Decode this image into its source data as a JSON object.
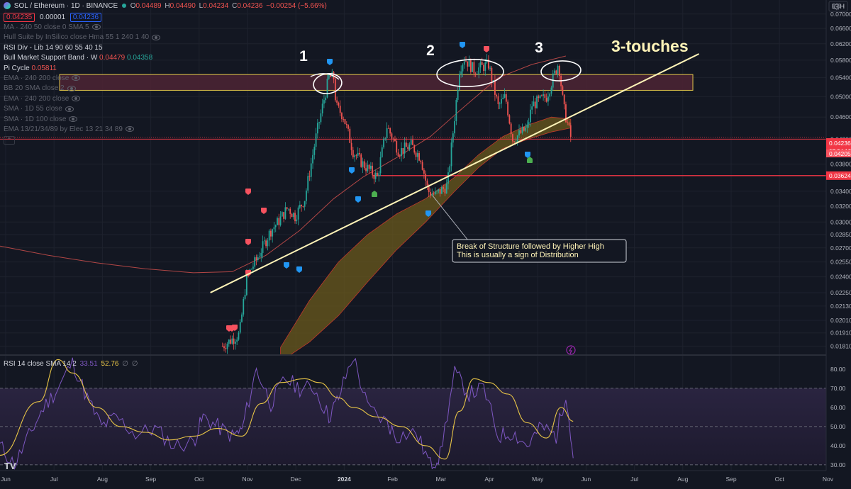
{
  "header": {
    "symbol": "SOL / Ethereum · 1D · BINANCE",
    "o_label": "O",
    "o": "0.04489",
    "h_label": "H",
    "h": "0.04490",
    "l_label": "L",
    "l": "0.04234",
    "c_label": "C",
    "c": "0.04236",
    "change": "−0.00254 (−5.66%)",
    "bid": "0.04235",
    "spread": "0.00001",
    "ask": "0.04236"
  },
  "indicators": [
    {
      "text": "MA · 240 50 close 0 SMA 5",
      "dim": true,
      "eye": true
    },
    {
      "text": "Hull Suite by InSilico close Hma 55 1 240 1 40",
      "dim": true,
      "eye": true
    },
    {
      "text": "RSI Div - Lib 14 90 60 55 40 15",
      "dim": false,
      "eye": false
    },
    {
      "text": "Bull Market Support Band · W",
      "dim": false,
      "eye": false,
      "v1": "0.04479",
      "v2": "0.04358"
    },
    {
      "text": "Pi Cycle",
      "dim": false,
      "eye": false,
      "v1": "0.05811"
    },
    {
      "text": "EMA · 240 200 close",
      "dim": true,
      "eye": true
    },
    {
      "text": "BB 20 SMA close 2",
      "dim": true,
      "eye": true
    },
    {
      "text": "EMA · 240 200 close",
      "dim": true,
      "eye": true
    },
    {
      "text": "SMA · 1D 55 close",
      "dim": true,
      "eye": true
    },
    {
      "text": "SMA · 1D 100 close",
      "dim": true,
      "eye": true
    },
    {
      "text": "EMA 13/21/34/89 by Elec 13 21 34 89",
      "dim": true,
      "eye": true
    }
  ],
  "rsi_legend": {
    "text": "RSI 14 close SMA 14 2",
    "v1": "33.51",
    "v2": "52.76"
  },
  "axis_currency": "ETH",
  "price_badges": [
    {
      "label": "0.04236",
      "sub": "07:34:12",
      "color": "#f23645",
      "value": 0.04236
    },
    {
      "label": "0.04205",
      "color": "#f7525f",
      "value": 0.04205
    },
    {
      "label": "0.03624",
      "color": "#f23645",
      "value": 0.03624
    }
  ],
  "annotations": {
    "touch1": "1",
    "touch2": "2",
    "touch3": "3",
    "title": "3-touches",
    "callout_line1": "Break of Structure followed by Higher High",
    "callout_line2": "This is usually a sign of Distribution"
  },
  "logo": "TV",
  "colors": {
    "background": "#131722",
    "up": "#26a69a",
    "down": "#ef5350",
    "trendline": "#fff4b8",
    "zone_fill": "#4a2333",
    "zone_border": "#e0c44a",
    "ribbon": "#6b5a1c",
    "rsi": "#7e57c2",
    "rsi_ma": "#e8c547",
    "red_line": "#f23645"
  },
  "chart_data": [
    {
      "type": "line",
      "title": "SOL / Ethereum · 1D · BINANCE",
      "ylabel": "ETH",
      "y_scale": "log",
      "ylim": [
        0.0175,
        0.072
      ],
      "y_ticks": [
        0.07,
        0.066,
        0.062,
        0.058,
        0.054,
        0.05,
        0.046,
        0.042,
        0.038,
        0.034,
        0.032,
        0.03,
        0.0285,
        0.027,
        0.0255,
        0.024,
        0.0225,
        0.0213,
        0.0201,
        0.0191,
        0.0181
      ],
      "y_tick_labels": [
        "0.07000",
        "0.06600",
        "0.06200",
        "0.05800",
        "0.05400",
        "0.05000",
        "0.04600",
        "0.04200",
        "0.03800",
        "0.03400",
        "0.03200",
        "0.03000",
        "0.02850",
        "0.02700",
        "0.02550",
        "0.02400",
        "0.02250",
        "0.02130",
        "0.02010",
        "0.01910",
        "0.01810"
      ],
      "x_labels": [
        "Jun",
        "Jul",
        "Aug",
        "Sep",
        "Oct",
        "Nov",
        "Dec",
        "2024",
        "Feb",
        "Mar",
        "Apr",
        "May",
        "Jun",
        "Jul",
        "Aug",
        "Sep",
        "Oct",
        "Nov"
      ],
      "x_month_index": [
        0,
        1,
        2,
        3,
        4,
        5,
        6,
        7,
        8,
        9,
        10,
        11,
        12,
        13,
        14,
        15,
        16,
        17
      ],
      "series": [
        {
          "name": "SOL / Ethereum",
          "x": [
            4.6,
            4.95,
            5.1,
            5.3,
            5.6,
            5.75,
            5.95,
            6.1,
            6.3,
            6.55,
            6.8,
            6.9,
            6.95,
            7.1,
            7.3,
            7.5,
            7.8,
            8.0,
            8.25,
            8.5,
            8.7,
            8.85,
            9.0,
            9.25,
            9.4,
            9.5,
            9.6,
            9.8,
            10.1,
            10.3,
            10.45,
            10.6,
            10.9,
            11.0,
            11.3,
            11.55,
            11.65,
            11.8
          ],
          "y": [
            0.0181,
            0.019,
            0.024,
            0.0257,
            0.029,
            0.03,
            0.0318,
            0.0307,
            0.033,
            0.0432,
            0.0541,
            0.054,
            0.048,
            0.0462,
            0.04,
            0.038,
            0.036,
            0.0443,
            0.04,
            0.041,
            0.039,
            0.034,
            0.0335,
            0.0348,
            0.046,
            0.056,
            0.0585,
            0.0557,
            0.057,
            0.048,
            0.05,
            0.042,
            0.044,
            0.0483,
            0.05,
            0.0575,
            0.048,
            0.0424
          ]
        }
      ],
      "horizontal_levels": [
        0.04236,
        0.04205,
        0.03624
      ],
      "resistance_zone": [
        0.0513,
        0.0547
      ],
      "trendline": [
        {
          "x": 4.35,
          "y": 0.0225
        },
        {
          "x": 14.45,
          "y": 0.0595
        }
      ],
      "marker_dates": [
        "Nov",
        "Dec",
        "Mar",
        "May"
      ]
    },
    {
      "type": "line",
      "title": "RSI 14 close SMA 14 2",
      "ylim": [
        27,
        87
      ],
      "y_ticks": [
        80,
        70,
        60,
        50,
        40,
        30
      ],
      "y_tick_labels": [
        "80.00",
        "70.00",
        "60.00",
        "50.00",
        "40.00",
        "30.00"
      ],
      "bands": [
        30,
        50,
        70
      ],
      "series": [
        {
          "name": "RSI",
          "x": [
            0,
            0.3,
            0.6,
            0.9,
            1.2,
            1.5,
            1.8,
            2.1,
            2.4,
            2.8,
            3.2,
            3.6,
            4.0,
            4.2,
            4.5,
            4.8,
            5.0,
            5.3,
            5.6,
            5.9,
            6.2,
            6.5,
            6.8,
            7.0,
            7.3,
            7.6,
            8.0,
            8.2,
            8.6,
            8.9,
            9.1,
            9.4,
            9.7,
            10.0,
            10.3,
            10.6,
            10.9,
            11.2,
            11.5,
            11.7,
            11.85
          ],
          "y": [
            40,
            30,
            45,
            60,
            70,
            84,
            65,
            50,
            55,
            46,
            49,
            40,
            42,
            55,
            50,
            45,
            48,
            80,
            62,
            75,
            70,
            70,
            55,
            65,
            87,
            60,
            52,
            45,
            47,
            30,
            35,
            78,
            67,
            70,
            45,
            47,
            40,
            50,
            45,
            68,
            33.51
          ]
        },
        {
          "name": "SMA",
          "x": [
            0,
            0.8,
            1.2,
            1.5,
            2.0,
            2.5,
            3.0,
            3.5,
            4.0,
            4.5,
            5.0,
            5.4,
            5.8,
            6.3,
            6.6,
            7.0,
            7.3,
            7.8,
            8.3,
            8.8,
            9.2,
            9.5,
            9.8,
            10.1,
            10.5,
            10.9,
            11.3,
            11.6,
            11.85
          ],
          "y": [
            35,
            63,
            85,
            78,
            60,
            50,
            47,
            43,
            45,
            49,
            45,
            62,
            73,
            75,
            73,
            65,
            60,
            55,
            50,
            40,
            33,
            58,
            75,
            73,
            67,
            52,
            44,
            60,
            52.76
          ]
        }
      ]
    }
  ]
}
